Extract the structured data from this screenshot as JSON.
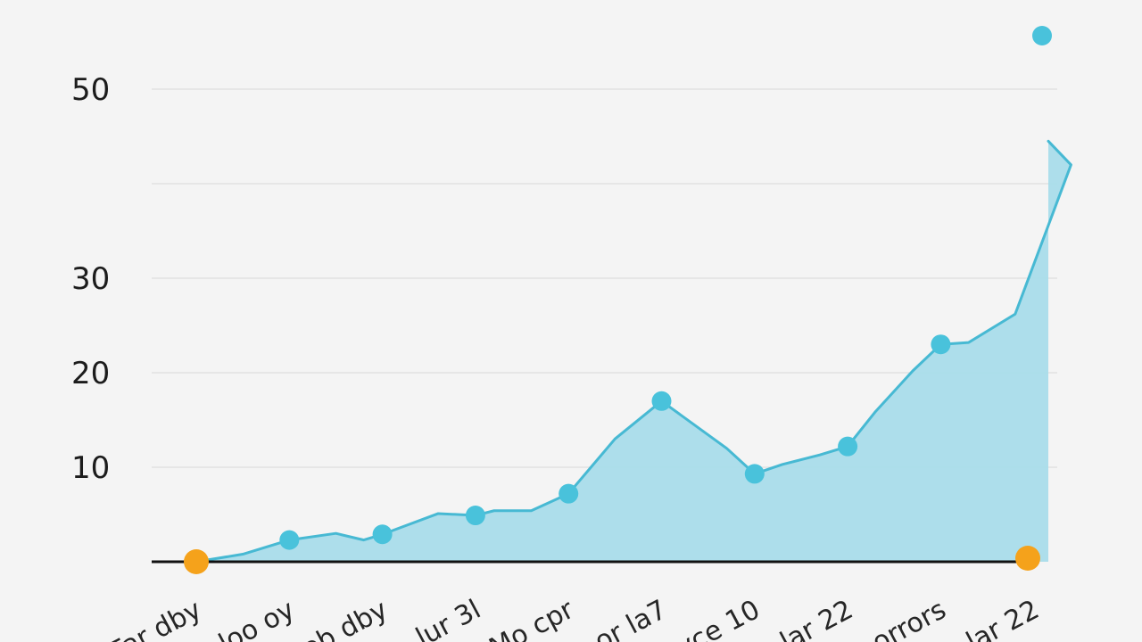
{
  "chart_data": {
    "type": "area",
    "categories": [
      "Far dby",
      "loo oy",
      "ob dby",
      "lur 3l",
      "Mo cpr",
      "or la7",
      "yce 10",
      "lar 22",
      "orrors",
      "lar 22"
    ],
    "x_tick_labels": [
      "Far dby",
      "loo oy",
      "ob dby",
      "lur 3l",
      "Mo cpr",
      "or la7",
      "yce 10",
      "lar 22",
      "orrors",
      "lar 22"
    ],
    "values": [
      0,
      2.3,
      2.9,
      4.9,
      7.2,
      17,
      9.3,
      12.2,
      23,
      44.5
    ],
    "intermediate_values": [
      0.8,
      3.0,
      2.3,
      5.1,
      5.4,
      5.4,
      13.0,
      12.0,
      10.3,
      11.3,
      15.9,
      20.2,
      23.2,
      26.2,
      42.0
    ],
    "y_ticks": [
      10,
      20,
      30,
      50
    ],
    "ylim": [
      0,
      50
    ],
    "title": "",
    "xlabel": "",
    "ylabel": "",
    "grid": true,
    "legend": "none",
    "colors": {
      "line": "#47b9d3",
      "area": "#a9dcea",
      "marker": "#49c2db",
      "end_marker": "#f5a21b",
      "axis": "#111111",
      "grid": "#dedede"
    }
  }
}
